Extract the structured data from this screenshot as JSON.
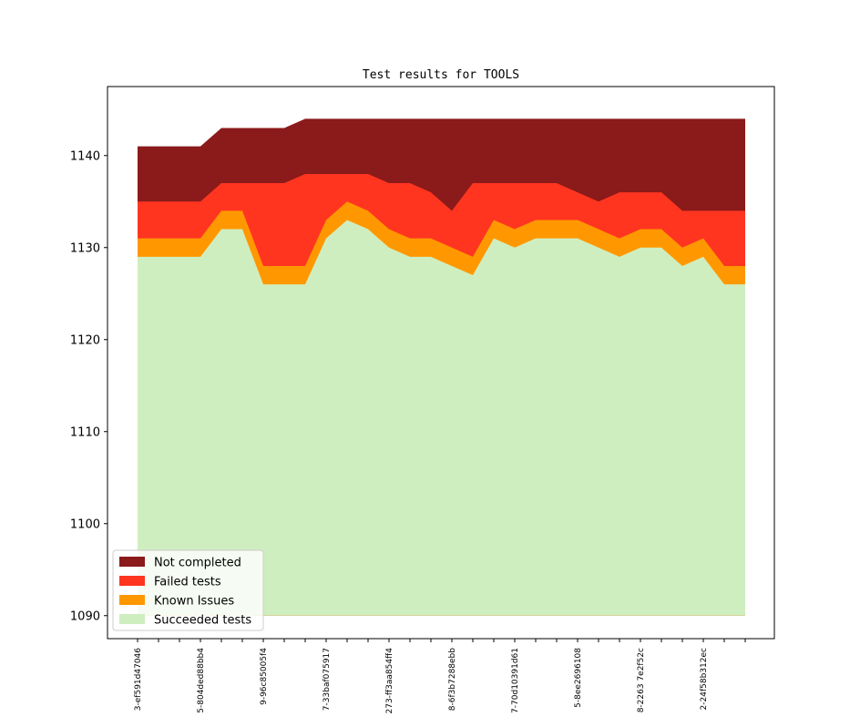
{
  "chart_data": {
    "type": "area",
    "title": "Test results for TOOLS",
    "xlabel": "",
    "ylabel": "",
    "ylim": [
      1087.5,
      1147.5
    ],
    "yticks": [
      1090,
      1100,
      1110,
      1120,
      1130,
      1140
    ],
    "baseline": 1090,
    "x_count": 30,
    "x_ticklabels": [
      {
        "index": 0,
        "label": "3-ef591d47046"
      },
      {
        "index": 3,
        "label": "5-804ded88bb4"
      },
      {
        "index": 6,
        "label": "9-96c85005f4"
      },
      {
        "index": 9,
        "label": "7-33baf075917"
      },
      {
        "index": 12,
        "label": "273-ff3aa854ff4"
      },
      {
        "index": 15,
        "label": "8-6f3b7288ebb"
      },
      {
        "index": 18,
        "label": "7-70d10391d61"
      },
      {
        "index": 21,
        "label": "5-8ee2696108"
      },
      {
        "index": 24,
        "label": "8-2263 7e2f52c"
      },
      {
        "index": 27,
        "label": "2-24f58b312ec"
      }
    ],
    "legend_position": "lower-left",
    "series": [
      {
        "name": "Not completed",
        "color": "#8b1a1a",
        "values": [
          1141,
          1141,
          1141,
          1141,
          1143,
          1143,
          1143,
          1143,
          1144,
          1144,
          1144,
          1144,
          1144,
          1144,
          1144,
          1144,
          1144,
          1144,
          1144,
          1144,
          1144,
          1144,
          1144,
          1144,
          1144,
          1144,
          1144,
          1144,
          1144,
          1144
        ]
      },
      {
        "name": "Failed tests",
        "color": "#ff3520",
        "values": [
          1135,
          1135,
          1135,
          1135,
          1137,
          1137,
          1137,
          1137,
          1138,
          1138,
          1138,
          1138,
          1137,
          1137,
          1136,
          1134,
          1137,
          1137,
          1137,
          1137,
          1137,
          1136,
          1135,
          1136,
          1136,
          1136,
          1134,
          1134,
          1134,
          1134
        ]
      },
      {
        "name": "Known Issues",
        "color": "#ff9800",
        "values": [
          1131,
          1131,
          1131,
          1131,
          1134,
          1134,
          1128,
          1128,
          1128,
          1133,
          1135,
          1134,
          1132,
          1131,
          1131,
          1130,
          1129,
          1133,
          1132,
          1133,
          1133,
          1133,
          1132,
          1131,
          1132,
          1132,
          1130,
          1131,
          1128,
          1128
        ]
      },
      {
        "name": "Succeeded tests",
        "color": "#cfeec0",
        "values": [
          1129,
          1129,
          1129,
          1129,
          1132,
          1132,
          1126,
          1126,
          1126,
          1131,
          1133,
          1132,
          1130,
          1129,
          1129,
          1128,
          1127,
          1131,
          1130,
          1131,
          1131,
          1131,
          1130,
          1129,
          1130,
          1130,
          1128,
          1129,
          1126,
          1126
        ]
      }
    ]
  }
}
